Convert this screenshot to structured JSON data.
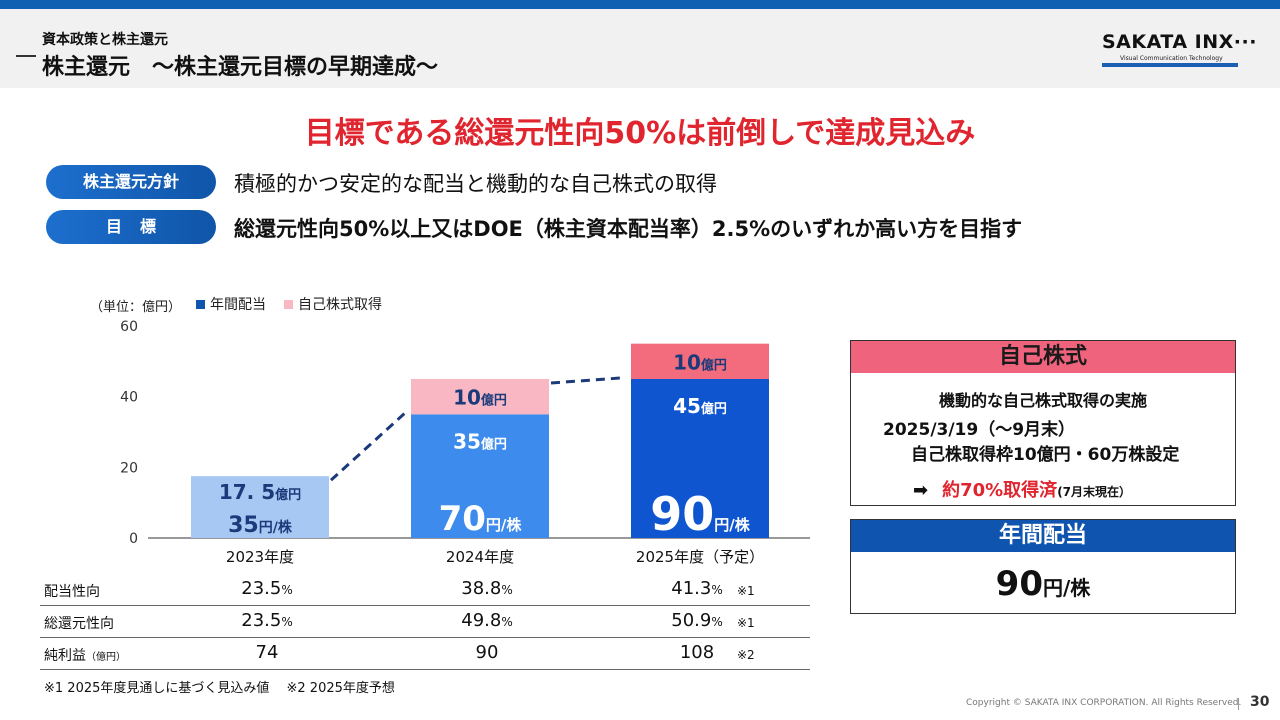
{
  "header": {
    "section": "資本政策と株主還元",
    "title": "株主還元　～株主還元目標の早期達成～"
  },
  "logo": {
    "name": "SAKATA INX",
    "tagline": "Visual Communication Technology"
  },
  "headline": "目標である総還元性向50%は前倒しで達成見込み",
  "policy": {
    "label": "株主還元方針",
    "text": "積極的かつ安定的な配当と機動的な自己株式の取得"
  },
  "goal": {
    "label": "目標",
    "text": "総還元性向50%以上又はDOE（株主資本配当率）2.5%のいずれか高い方を目指す"
  },
  "chart_data": {
    "type": "bar",
    "stacked": true,
    "unit_label": "（単位：億円）",
    "categories": [
      "2023年度",
      "2024年度",
      "2025年度（予定）"
    ],
    "ylim": [
      0,
      60
    ],
    "yticks": [
      0,
      20,
      40,
      60
    ],
    "grid": false,
    "legend_position": "top",
    "series": [
      {
        "name": "年間配当",
        "values": [
          17.5,
          35,
          45
        ],
        "value_labels": [
          "17. 5",
          "35",
          "45"
        ],
        "colors": [
          "#a8c8f4",
          "#3d8bec",
          "#0f55d0"
        ]
      },
      {
        "name": "自己株式取得",
        "values": [
          0,
          10,
          10
        ],
        "value_labels": [
          "",
          "10",
          "10"
        ],
        "colors": [
          "#f8b7c2",
          "#f8b7c2",
          "#f26c7d"
        ]
      }
    ],
    "value_unit": "億円",
    "dps": {
      "values": [
        "35",
        "70",
        "90"
      ],
      "unit": "円/株"
    },
    "legend_colors": {
      "年間配当": "#0f55b0",
      "自己株式取得": "#f8b7c2"
    }
  },
  "metrics": {
    "rows": [
      {
        "label": "配当性向",
        "label_note": "",
        "values": [
          "23.5",
          "38.8",
          "41.3"
        ],
        "unit": "%",
        "mark": "※1"
      },
      {
        "label": "総還元性向",
        "label_note": "",
        "values": [
          "23.5",
          "49.8",
          "50.9"
        ],
        "unit": "%",
        "mark": "※1"
      },
      {
        "label": "純利益",
        "label_note": "（億円）",
        "values": [
          "74",
          "90",
          "108"
        ],
        "unit": "",
        "mark": "※2"
      }
    ],
    "notes": "※1  2025年度見通しに基づく見込み値　 ※2  2025年度予想"
  },
  "buyback_box": {
    "title": "自己株式",
    "line1": "機動的な自己株式取得の実施",
    "line2": "2025/3/19（～9月末）",
    "line3": "自己株取得枠10億円・60万株設定",
    "arrow_icon": "right-arrow-icon",
    "status": "約70%取得済",
    "status_note": "(7月末現在）"
  },
  "dividend_box": {
    "title": "年間配当",
    "amount": "90",
    "unit": "円/株"
  },
  "footer": {
    "copyright": "Copyright © SAKATA INX CORPORATION. All Rights Reserved.",
    "page": "30"
  },
  "colors": {
    "brand_blue": "#0f5fb3",
    "accent_red": "#e0252f",
    "pink": "#f0637d"
  }
}
